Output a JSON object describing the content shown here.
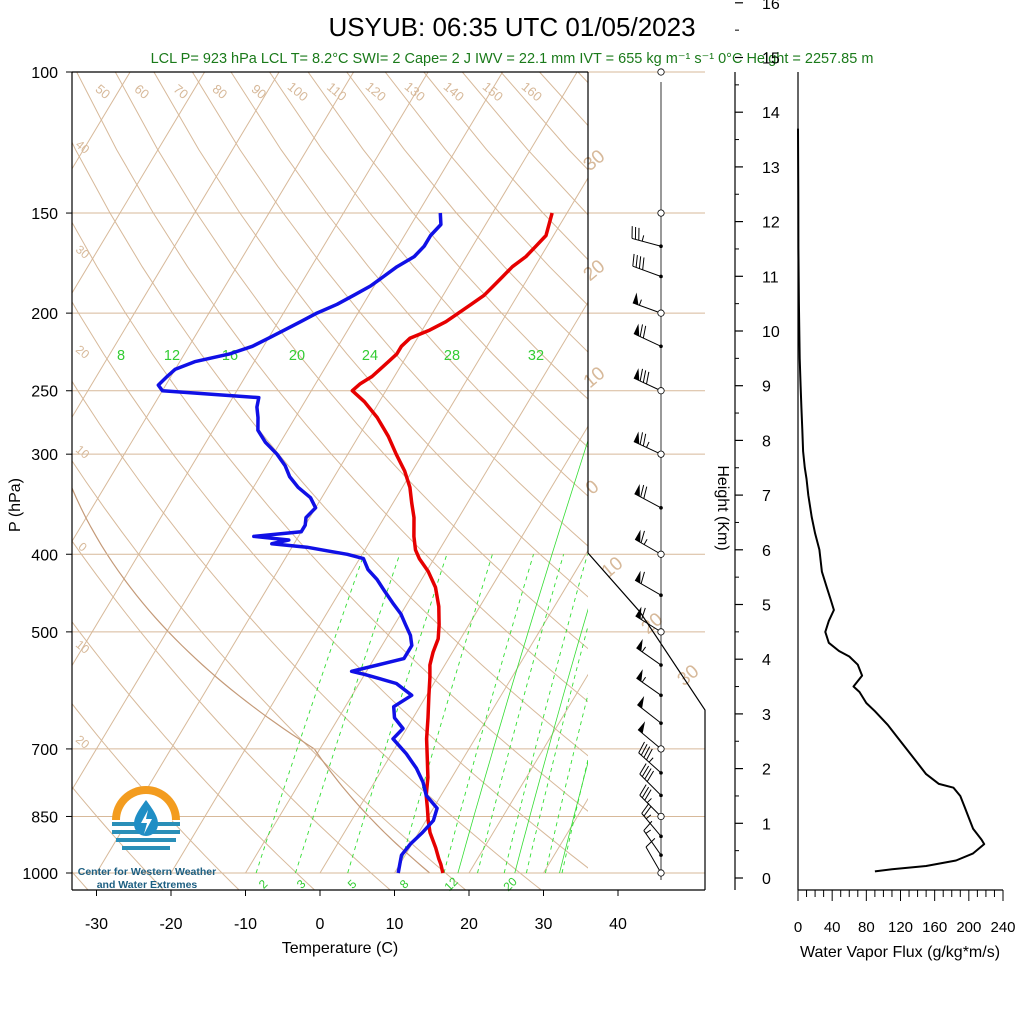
{
  "header": {
    "title": "USYUB: 06:35 UTC 01/05/2023",
    "subtitle": "LCL P= 923 hPa  LCL T= 8.2°C  SWI= 2  Cape= 2 J  IWV = 22.1 mm  IVT = 655 kg m⁻¹ s⁻¹  0°C Height = 2257.85 m"
  },
  "colors": {
    "temperature": "#e60000",
    "dewpoint": "#1010e6",
    "mixing_ratio": "#33dd33",
    "skew_lines": "#d7b99a",
    "subtitle": "#1a7a1a",
    "flux": "#000000"
  },
  "logo": {
    "line1": "Center for Western Weather",
    "line2": "and Water Extremes"
  },
  "chart_data": [
    {
      "type": "line",
      "title": "USYUB: 06:35 UTC 01/05/2023",
      "xlabel": "Temperature (C)",
      "ylabel": "P (hPa)",
      "x_ticks": [
        -30,
        -20,
        -10,
        0,
        10,
        20,
        30,
        40
      ],
      "y_ticks": [
        100,
        150,
        200,
        250,
        300,
        400,
        500,
        700,
        850,
        1000
      ],
      "y_tick_labels": [
        "100",
        "150",
        "200",
        "250",
        "300",
        "400",
        "500",
        "700",
        "850",
        "1000"
      ],
      "isotherm_labels": [
        -40,
        -30,
        -20,
        -10,
        0,
        10,
        20,
        30
      ],
      "dry_adiabat_labels": [
        50,
        60,
        70,
        80,
        90,
        100,
        110,
        120,
        130,
        140,
        150,
        160
      ],
      "mixing_ratio_top_labels": [
        "8",
        "12",
        "16",
        "20",
        "24",
        "28",
        "32"
      ],
      "mixing_ratio_bottom_labels": [
        "2",
        "3",
        "5",
        "8",
        "12",
        "20"
      ],
      "series": [
        {
          "name": "Temperature",
          "color": "#e60000",
          "points": [
            [
              16.5,
              1000
            ],
            [
              15.5,
              975
            ],
            [
              14.8,
              960
            ],
            [
              13.5,
              930
            ],
            [
              11.5,
              890
            ],
            [
              10.3,
              860
            ],
            [
              9.2,
              830
            ],
            [
              8.0,
              800
            ],
            [
              6.8,
              760
            ],
            [
              5.2,
              720
            ],
            [
              3.5,
              680
            ],
            [
              2.0,
              640
            ],
            [
              0.3,
              600
            ],
            [
              -1.0,
              570
            ],
            [
              -2.0,
              550
            ],
            [
              -2.6,
              530
            ],
            [
              -3.0,
              510
            ],
            [
              -4.0,
              490
            ],
            [
              -5.5,
              465
            ],
            [
              -7.5,
              440
            ],
            [
              -9.8,
              420
            ],
            [
              -12.0,
              405
            ],
            [
              -13.2,
              395
            ],
            [
              -14.5,
              380
            ],
            [
              -16.0,
              360
            ],
            [
              -17.5,
              345
            ],
            [
              -19.0,
              330
            ],
            [
              -21.0,
              315
            ],
            [
              -23.5,
              300
            ],
            [
              -26.0,
              285
            ],
            [
              -29.0,
              270
            ],
            [
              -32.0,
              258
            ],
            [
              -34.5,
              250
            ],
            [
              -34.0,
              245
            ],
            [
              -33.0,
              240
            ],
            [
              -32.5,
              235
            ],
            [
              -32.0,
              230
            ],
            [
              -31.5,
              225
            ],
            [
              -31.5,
              220
            ],
            [
              -31.0,
              215
            ],
            [
              -29.0,
              210
            ],
            [
              -27.5,
              205
            ],
            [
              -26.5,
              200
            ],
            [
              -25.5,
              195
            ],
            [
              -24.5,
              190
            ],
            [
              -24.0,
              185
            ],
            [
              -23.5,
              180
            ],
            [
              -23.0,
              175
            ],
            [
              -22.0,
              170
            ],
            [
              -21.5,
              165
            ],
            [
              -21.0,
              160
            ],
            [
              -21.5,
              155
            ],
            [
              -22.0,
              150
            ]
          ]
        },
        {
          "name": "Dewpoint",
          "color": "#1010e6",
          "points": [
            [
              10.5,
              1000
            ],
            [
              10.0,
              975
            ],
            [
              9.5,
              950
            ],
            [
              9.8,
              920
            ],
            [
              10.5,
              890
            ],
            [
              11.0,
              860
            ],
            [
              10.5,
              830
            ],
            [
              8.0,
              800
            ],
            [
              6.5,
              770
            ],
            [
              4.5,
              740
            ],
            [
              2.0,
              710
            ],
            [
              -1.0,
              680
            ],
            [
              -0.5,
              660
            ],
            [
              -2.5,
              640
            ],
            [
              -3.5,
              620
            ],
            [
              -2.0,
              600
            ],
            [
              -5.0,
              580
            ],
            [
              -10.0,
              565
            ],
            [
              -12.0,
              560
            ],
            [
              -9.0,
              550
            ],
            [
              -6.0,
              540
            ],
            [
              -6.0,
              520
            ],
            [
              -7.0,
              505
            ],
            [
              -8.5,
              490
            ],
            [
              -10.0,
              475
            ],
            [
              -12.0,
              460
            ],
            [
              -14.0,
              445
            ],
            [
              -16.0,
              430
            ],
            [
              -18.0,
              418
            ],
            [
              -19.5,
              405
            ],
            [
              -22.0,
              400
            ],
            [
              -25.0,
              396
            ],
            [
              -28.0,
              392
            ],
            [
              -33.0,
              388
            ],
            [
              -31.0,
              384
            ],
            [
              -36.0,
              380
            ],
            [
              -30.0,
              375
            ],
            [
              -30.0,
              368
            ],
            [
              -30.5,
              360
            ],
            [
              -30.0,
              350
            ],
            [
              -31.5,
              340
            ],
            [
              -34.0,
              330
            ],
            [
              -36.0,
              320
            ],
            [
              -37.5,
              310
            ],
            [
              -39.5,
              300
            ],
            [
              -42.0,
              290
            ],
            [
              -44.0,
              280
            ],
            [
              -45.0,
              270
            ],
            [
              -46.0,
              262
            ],
            [
              -46.5,
              255
            ],
            [
              -60.0,
              250
            ],
            [
              -61.0,
              246
            ],
            [
              -60.5,
              240
            ],
            [
              -60.0,
              235
            ],
            [
              -58.0,
              230
            ],
            [
              -54.0,
              225
            ],
            [
              -51.5,
              220
            ],
            [
              -50.0,
              215
            ],
            [
              -48.5,
              210
            ],
            [
              -47.0,
              205
            ],
            [
              -45.5,
              200
            ],
            [
              -43.5,
              195
            ],
            [
              -42.0,
              190
            ],
            [
              -40.5,
              185
            ],
            [
              -39.5,
              180
            ],
            [
              -38.5,
              175
            ],
            [
              -37.0,
              170
            ],
            [
              -36.5,
              165
            ],
            [
              -36.5,
              160
            ],
            [
              -36.0,
              155
            ],
            [
              -37.0,
              150
            ]
          ]
        }
      ],
      "wind_barbs": [
        {
          "p": 1000,
          "speed_kt": 10,
          "dir": 210
        },
        {
          "p": 950,
          "speed_kt": 15,
          "dir": 215
        },
        {
          "p": 900,
          "speed_kt": 25,
          "dir": 220
        },
        {
          "p": 850,
          "speed_kt": 35,
          "dir": 225
        },
        {
          "p": 800,
          "speed_kt": 40,
          "dir": 225
        },
        {
          "p": 750,
          "speed_kt": 45,
          "dir": 228
        },
        {
          "p": 700,
          "speed_kt": 50,
          "dir": 230
        },
        {
          "p": 650,
          "speed_kt": 50,
          "dir": 232
        },
        {
          "p": 600,
          "speed_kt": 55,
          "dir": 235
        },
        {
          "p": 550,
          "speed_kt": 55,
          "dir": 235
        },
        {
          "p": 500,
          "speed_kt": 60,
          "dir": 238
        },
        {
          "p": 450,
          "speed_kt": 60,
          "dir": 240
        },
        {
          "p": 400,
          "speed_kt": 65,
          "dir": 240
        },
        {
          "p": 350,
          "speed_kt": 70,
          "dir": 242
        },
        {
          "p": 300,
          "speed_kt": 75,
          "dir": 245
        },
        {
          "p": 250,
          "speed_kt": 80,
          "dir": 245
        },
        {
          "p": 220,
          "speed_kt": 70,
          "dir": 245
        },
        {
          "p": 200,
          "speed_kt": 55,
          "dir": 250
        },
        {
          "p": 180,
          "speed_kt": 40,
          "dir": 250
        },
        {
          "p": 165,
          "speed_kt": 35,
          "dir": 255
        }
      ]
    },
    {
      "type": "line",
      "xlabel": "Water Vapor Flux (g/kg*m/s)",
      "ylabel": "Height (Km)",
      "x_ticks": [
        0,
        40,
        80,
        120,
        160,
        200,
        240
      ],
      "y_ticks": [
        0,
        1,
        2,
        3,
        4,
        5,
        6,
        7,
        8,
        9,
        10,
        11,
        12,
        13,
        14,
        15,
        16
      ],
      "xlim": [
        0,
        240
      ],
      "ylim": [
        0,
        16.3
      ],
      "series": [
        {
          "name": "Water Vapor Flux",
          "points": [
            [
              90,
              0.12
            ],
            [
              110,
              0.16
            ],
            [
              150,
              0.22
            ],
            [
              185,
              0.32
            ],
            [
              205,
              0.45
            ],
            [
              218,
              0.62
            ],
            [
              215,
              0.7
            ],
            [
              205,
              0.9
            ],
            [
              200,
              1.1
            ],
            [
              195,
              1.3
            ],
            [
              190,
              1.5
            ],
            [
              182,
              1.65
            ],
            [
              165,
              1.72
            ],
            [
              150,
              1.9
            ],
            [
              140,
              2.1
            ],
            [
              125,
              2.4
            ],
            [
              115,
              2.6
            ],
            [
              105,
              2.8
            ],
            [
              90,
              3.05
            ],
            [
              80,
              3.2
            ],
            [
              72,
              3.4
            ],
            [
              65,
              3.5
            ],
            [
              75,
              3.7
            ],
            [
              70,
              3.9
            ],
            [
              60,
              4.05
            ],
            [
              48,
              4.15
            ],
            [
              36,
              4.3
            ],
            [
              32,
              4.5
            ],
            [
              36,
              4.7
            ],
            [
              42,
              4.9
            ],
            [
              38,
              5.1
            ],
            [
              34,
              5.3
            ],
            [
              28,
              5.6
            ],
            [
              25,
              6.0
            ],
            [
              20,
              6.3
            ],
            [
              16,
              6.6
            ],
            [
              12,
              7.0
            ],
            [
              10,
              7.3
            ],
            [
              8,
              7.5
            ],
            [
              6,
              7.8
            ],
            [
              5,
              8.2
            ],
            [
              4,
              8.6
            ],
            [
              3,
              9.0
            ],
            [
              2,
              9.5
            ],
            [
              1.5,
              10.0
            ],
            [
              1,
              10.5
            ],
            [
              0.5,
              11.5
            ],
            [
              0.3,
              12.5
            ],
            [
              0,
              13.7
            ]
          ]
        }
      ]
    }
  ]
}
